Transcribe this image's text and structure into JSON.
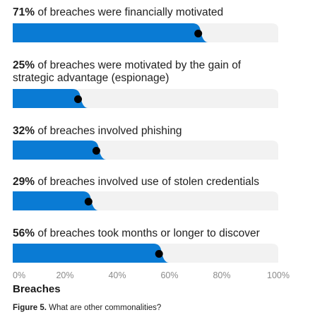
{
  "chart_data": {
    "type": "bar",
    "orientation": "horizontal",
    "xlabel": "Breaches",
    "xlim": [
      0,
      100
    ],
    "xticks": [
      "0%",
      "20%",
      "40%",
      "60%",
      "80%",
      "100%"
    ],
    "categories": [
      {
        "pct": "71%",
        "text": " of breaches were financially motivated"
      },
      {
        "pct": "25%",
        "text": " of breaches were motivated by the gain of strategic advantage (espionage)"
      },
      {
        "pct": "32%",
        "text": " of breaches involved phishing"
      },
      {
        "pct": "29%",
        "text": " of breaches involved use of stolen credentials"
      },
      {
        "pct": "56%",
        "text": " of breaches took months or longer to discover"
      }
    ],
    "values": [
      71,
      25,
      32,
      29,
      56
    ],
    "colors": {
      "bar": "#0a7bd4",
      "track": "#f2f2f2",
      "marker": "#000000"
    }
  },
  "caption": {
    "figure": "Figure 5.",
    "text": " What are other commonalities?"
  }
}
